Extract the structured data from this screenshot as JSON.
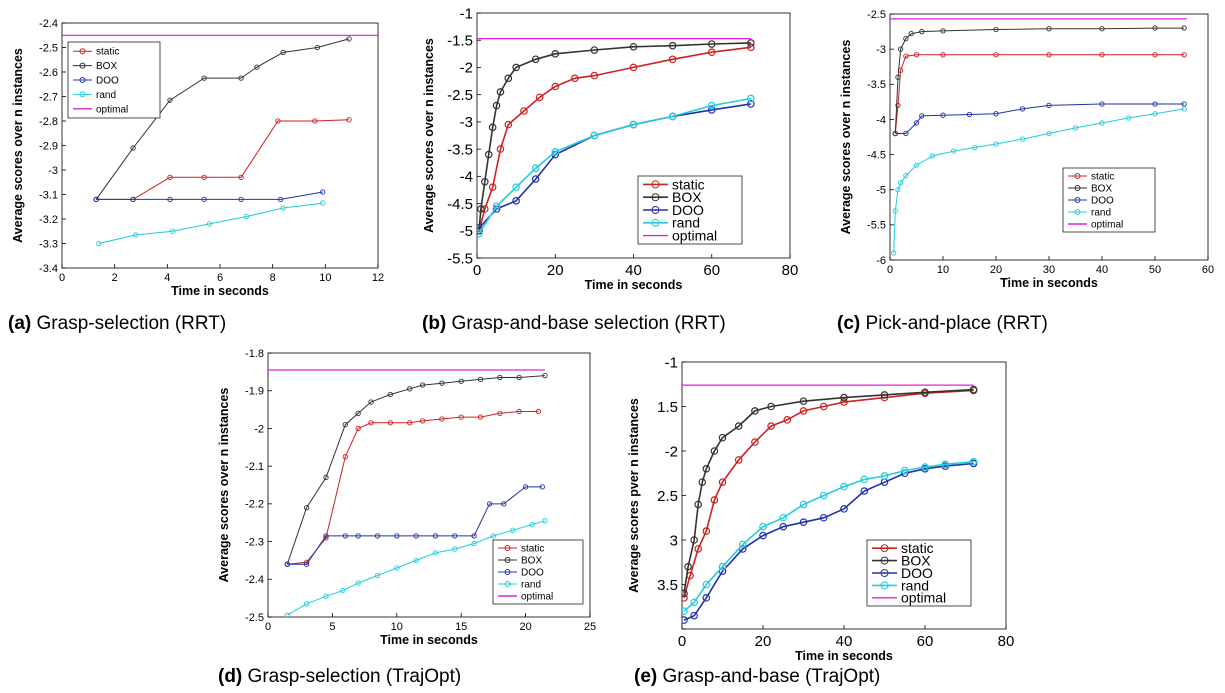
{
  "charts": [
    {
      "id": "a",
      "caption_tag": "(a)",
      "caption_text": "Grasp-selection (RRT)",
      "chart_data": {
        "type": "line",
        "xlabel": "Time in seconds",
        "ylabel": "Average scores over n instances",
        "xlim": [
          0,
          12
        ],
        "ylim": [
          -3.4,
          -2.4
        ],
        "xticks": [
          0,
          2,
          4,
          6,
          8,
          10,
          12
        ],
        "yticks": [
          -3.4,
          -3.3,
          -3.2,
          -3.1,
          -3,
          -2.9,
          -2.8,
          -2.7,
          -2.6,
          -2.5,
          -2.4
        ],
        "legend_position": "top-left",
        "series": [
          {
            "name": "static",
            "color": "#cc2222",
            "x": [
              1.3,
              2.7,
              4.1,
              5.4,
              6.8,
              8.2,
              9.6,
              10.9
            ],
            "y": [
              -3.12,
              -3.12,
              -3.03,
              -3.03,
              -3.03,
              -2.8,
              -2.8,
              -2.795
            ]
          },
          {
            "name": "BOX",
            "color": "#333333",
            "x": [
              1.3,
              2.7,
              4.1,
              5.4,
              6.8,
              7.4,
              8.4,
              9.7,
              10.9
            ],
            "y": [
              -3.12,
              -2.91,
              -2.715,
              -2.625,
              -2.625,
              -2.58,
              -2.52,
              -2.5,
              -2.465
            ]
          },
          {
            "name": "DOO",
            "color": "#2233aa",
            "x": [
              1.3,
              2.7,
              4.1,
              5.4,
              6.8,
              8.3,
              9.9
            ],
            "y": [
              -3.12,
              -3.12,
              -3.12,
              -3.12,
              -3.12,
              -3.12,
              -3.09
            ]
          },
          {
            "name": "rand",
            "color": "#22ccdd",
            "x": [
              1.4,
              2.8,
              4.2,
              5.6,
              7.0,
              8.4,
              9.9
            ],
            "y": [
              -3.3,
              -3.265,
              -3.25,
              -3.22,
              -3.19,
              -3.155,
              -3.135
            ]
          },
          {
            "name": "optimal",
            "color": "#dd22dd",
            "x": [
              0,
              12
            ],
            "y": [
              -2.45,
              -2.45
            ]
          }
        ]
      }
    },
    {
      "id": "b",
      "caption_tag": "(b)",
      "caption_text": "Grasp-and-base selection (RRT)",
      "chart_data": {
        "type": "line",
        "xlabel": "Time in seconds",
        "ylabel": "Average scores over n instances",
        "xlim": [
          0,
          80
        ],
        "ylim": [
          -5.5,
          -1
        ],
        "xticks": [
          0,
          20,
          40,
          60,
          80
        ],
        "yticks": [
          -5.5,
          -5,
          -4.5,
          -4,
          -3.5,
          -3,
          -2.5,
          -2,
          -1.5,
          -1
        ],
        "legend_position": "bottom-right",
        "series": [
          {
            "name": "static",
            "color": "#cc2222",
            "x": [
              0.5,
              2,
              4,
              6,
              8,
              12,
              16,
              20,
              25,
              30,
              40,
              50,
              60,
              70
            ],
            "y": [
              -5,
              -4.6,
              -4.2,
              -3.5,
              -3.05,
              -2.8,
              -2.55,
              -2.35,
              -2.2,
              -2.15,
              -2.0,
              -1.85,
              -1.72,
              -1.63
            ]
          },
          {
            "name": "BOX",
            "color": "#333333",
            "x": [
              0.5,
              1,
              2,
              3,
              4,
              5,
              6,
              8,
              10,
              15,
              20,
              30,
              40,
              50,
              60,
              70
            ],
            "y": [
              -5,
              -4.6,
              -4.1,
              -3.6,
              -3.1,
              -2.7,
              -2.45,
              -2.2,
              -2.0,
              -1.85,
              -1.75,
              -1.68,
              -1.62,
              -1.6,
              -1.57,
              -1.55
            ]
          },
          {
            "name": "DOO",
            "color": "#2233aa",
            "x": [
              0.5,
              5,
              10,
              15,
              20,
              30,
              40,
              50,
              60,
              70
            ],
            "y": [
              -4.95,
              -4.6,
              -4.45,
              -4.05,
              -3.6,
              -3.25,
              -3.05,
              -2.9,
              -2.78,
              -2.67
            ]
          },
          {
            "name": "rand",
            "color": "#22ccdd",
            "x": [
              0.5,
              5,
              10,
              15,
              20,
              30,
              40,
              50,
              60,
              70
            ],
            "y": [
              -5.05,
              -4.55,
              -4.2,
              -3.85,
              -3.55,
              -3.25,
              -3.05,
              -2.9,
              -2.7,
              -2.57
            ]
          },
          {
            "name": "optimal",
            "color": "#dd22dd",
            "x": [
              0,
              70
            ],
            "y": [
              -1.47,
              -1.47
            ]
          }
        ]
      }
    },
    {
      "id": "c",
      "caption_tag": "(c)",
      "caption_text": "Pick-and-place (RRT)",
      "chart_data": {
        "type": "line",
        "xlabel": "Time in seconds",
        "ylabel": "Average scores over n instances",
        "xlim": [
          0,
          60
        ],
        "ylim": [
          -6,
          -2.5
        ],
        "xticks": [
          0,
          10,
          20,
          30,
          40,
          50,
          60
        ],
        "yticks": [
          -6,
          -5.5,
          -5,
          -4.5,
          -4,
          -3.5,
          -3,
          -2.5
        ],
        "legend_position": "bottom-right",
        "series": [
          {
            "name": "static",
            "color": "#cc2222",
            "x": [
              1,
              1.5,
              2,
              3,
              5,
              10,
              20,
              30,
              40,
              50,
              55.5
            ],
            "y": [
              -4.2,
              -3.8,
              -3.3,
              -3.1,
              -3.08,
              -3.08,
              -3.08,
              -3.08,
              -3.08,
              -3.08,
              -3.08
            ]
          },
          {
            "name": "BOX",
            "color": "#333333",
            "x": [
              1,
              1.5,
              2,
              3,
              4,
              6,
              10,
              20,
              30,
              40,
              50,
              55.5
            ],
            "y": [
              -4.2,
              -3.4,
              -3.0,
              -2.85,
              -2.78,
              -2.75,
              -2.74,
              -2.72,
              -2.71,
              -2.71,
              -2.7,
              -2.7
            ]
          },
          {
            "name": "DOO",
            "color": "#2233aa",
            "x": [
              1,
              3,
              5,
              6,
              10,
              15,
              20,
              25,
              30,
              40,
              50,
              55.5
            ],
            "y": [
              -4.2,
              -4.2,
              -4.05,
              -3.95,
              -3.94,
              -3.93,
              -3.92,
              -3.85,
              -3.8,
              -3.78,
              -3.78,
              -3.78
            ]
          },
          {
            "name": "rand",
            "color": "#22ccdd",
            "x": [
              0.7,
              1,
              1.5,
              2,
              3,
              5,
              8,
              12,
              16,
              20,
              25,
              30,
              35,
              40,
              45,
              50,
              55.5
            ],
            "y": [
              -5.9,
              -5.3,
              -5.0,
              -4.9,
              -4.8,
              -4.65,
              -4.52,
              -4.45,
              -4.4,
              -4.35,
              -4.28,
              -4.2,
              -4.12,
              -4.05,
              -3.98,
              -3.92,
              -3.85
            ]
          },
          {
            "name": "optimal",
            "color": "#dd22dd",
            "x": [
              0,
              56
            ],
            "y": [
              -2.57,
              -2.57
            ]
          }
        ]
      }
    },
    {
      "id": "d",
      "caption_tag": "(d)",
      "caption_text": "Grasp-selection (TrajOpt)",
      "chart_data": {
        "type": "line",
        "xlabel": "Time in seconds",
        "ylabel": "Average scores over n instances",
        "xlim": [
          0,
          25
        ],
        "ylim": [
          -2.5,
          -1.8
        ],
        "xticks": [
          0,
          5,
          10,
          15,
          20,
          25
        ],
        "yticks": [
          -2.5,
          -2.4,
          -2.3,
          -2.2,
          -2.1,
          -2,
          -1.9,
          -1.8
        ],
        "legend_position": "bottom-right",
        "series": [
          {
            "name": "static",
            "color": "#cc2222",
            "x": [
              1.5,
              3.0,
              4.5,
              6.0,
              7.0,
              8.0,
              9.5,
              11,
              12,
              13.5,
              15,
              16.5,
              18,
              19.5,
              21
            ],
            "y": [
              -2.36,
              -2.355,
              -2.29,
              -2.075,
              -2.0,
              -1.985,
              -1.985,
              -1.985,
              -1.98,
              -1.975,
              -1.97,
              -1.97,
              -1.96,
              -1.955,
              -1.955
            ]
          },
          {
            "name": "BOX",
            "color": "#333333",
            "x": [
              1.5,
              3.0,
              4.5,
              6.0,
              7.0,
              8.0,
              9.5,
              11,
              12,
              13.5,
              15,
              16.5,
              18,
              19.5,
              21.5
            ],
            "y": [
              -2.36,
              -2.21,
              -2.13,
              -1.99,
              -1.96,
              -1.93,
              -1.91,
              -1.895,
              -1.885,
              -1.88,
              -1.875,
              -1.87,
              -1.865,
              -1.865,
              -1.86
            ]
          },
          {
            "name": "DOO",
            "color": "#2233aa",
            "x": [
              1.5,
              3.0,
              4.5,
              6.0,
              7.0,
              8.5,
              10,
              11.5,
              13,
              14.5,
              16,
              17.2,
              18.3,
              20,
              21.3
            ],
            "y": [
              -2.36,
              -2.36,
              -2.285,
              -2.285,
              -2.285,
              -2.285,
              -2.285,
              -2.285,
              -2.285,
              -2.285,
              -2.285,
              -2.2,
              -2.2,
              -2.155,
              -2.155
            ]
          },
          {
            "name": "rand",
            "color": "#22ccdd",
            "x": [
              1.5,
              3.0,
              4.5,
              5.8,
              7.0,
              8.5,
              10,
              11.5,
              13,
              14.5,
              16,
              17.5,
              19,
              20.5,
              21.5
            ],
            "y": [
              -2.495,
              -2.465,
              -2.445,
              -2.43,
              -2.41,
              -2.39,
              -2.37,
              -2.35,
              -2.33,
              -2.32,
              -2.305,
              -2.285,
              -2.27,
              -2.255,
              -2.245
            ]
          },
          {
            "name": "optimal",
            "color": "#dd22dd",
            "x": [
              0,
              21.5
            ],
            "y": [
              -1.845,
              -1.845
            ]
          }
        ]
      }
    },
    {
      "id": "e",
      "caption_tag": "(e)",
      "caption_text": "Grasp-and-base (TrajOpt)",
      "chart_data": {
        "type": "line",
        "xlabel": "Time in seconds",
        "ylabel": "Average scores pver n instances",
        "xlim": [
          0,
          80
        ],
        "ylim": [
          -4,
          -1
        ],
        "xticks": [
          0,
          20,
          40,
          60,
          80
        ],
        "ytick_values": [
          -4,
          -3.5,
          -3,
          -2.5,
          -2,
          -1.5,
          -1
        ],
        "ytick_labels": [
          "",
          "3.5",
          "3",
          "2.5",
          "-2",
          "1.5",
          "-1"
        ],
        "legend_position": "bottom-right",
        "series": [
          {
            "name": "static",
            "color": "#cc2222",
            "x": [
              0.5,
              2,
              4,
              6,
              8,
              10,
              14,
              18,
              22,
              26,
              30,
              35,
              40,
              50,
              60,
              72
            ],
            "y": [
              -3.65,
              -3.4,
              -3.1,
              -2.9,
              -2.55,
              -2.35,
              -2.1,
              -1.9,
              -1.72,
              -1.65,
              -1.55,
              -1.5,
              -1.45,
              -1.4,
              -1.35,
              -1.32
            ]
          },
          {
            "name": "BOX",
            "color": "#333333",
            "x": [
              0.5,
              1.5,
              3,
              4,
              5,
              6,
              8,
              10,
              14,
              18,
              22,
              30,
              40,
              50,
              60,
              72
            ],
            "y": [
              -3.6,
              -3.3,
              -3.0,
              -2.6,
              -2.35,
              -2.2,
              -2.0,
              -1.85,
              -1.72,
              -1.55,
              -1.5,
              -1.44,
              -1.4,
              -1.37,
              -1.34,
              -1.31
            ]
          },
          {
            "name": "DOO",
            "color": "#2233aa",
            "x": [
              0.5,
              3,
              6,
              10,
              15,
              20,
              25,
              30,
              35,
              40,
              45,
              50,
              55,
              60,
              65,
              72
            ],
            "y": [
              -3.9,
              -3.85,
              -3.65,
              -3.35,
              -3.1,
              -2.95,
              -2.85,
              -2.8,
              -2.75,
              -2.65,
              -2.45,
              -2.35,
              -2.25,
              -2.2,
              -2.17,
              -2.14
            ]
          },
          {
            "name": "rand",
            "color": "#22ccdd",
            "x": [
              0.5,
              3,
              6,
              10,
              15,
              20,
              25,
              30,
              35,
              40,
              45,
              50,
              55,
              60,
              65,
              72
            ],
            "y": [
              -3.8,
              -3.7,
              -3.5,
              -3.3,
              -3.05,
              -2.85,
              -2.75,
              -2.6,
              -2.5,
              -2.4,
              -2.32,
              -2.28,
              -2.22,
              -2.18,
              -2.15,
              -2.12
            ]
          },
          {
            "name": "optimal",
            "color": "#dd22dd",
            "x": [
              0,
              72
            ],
            "y": [
              -1.26,
              -1.26
            ]
          }
        ]
      }
    }
  ]
}
